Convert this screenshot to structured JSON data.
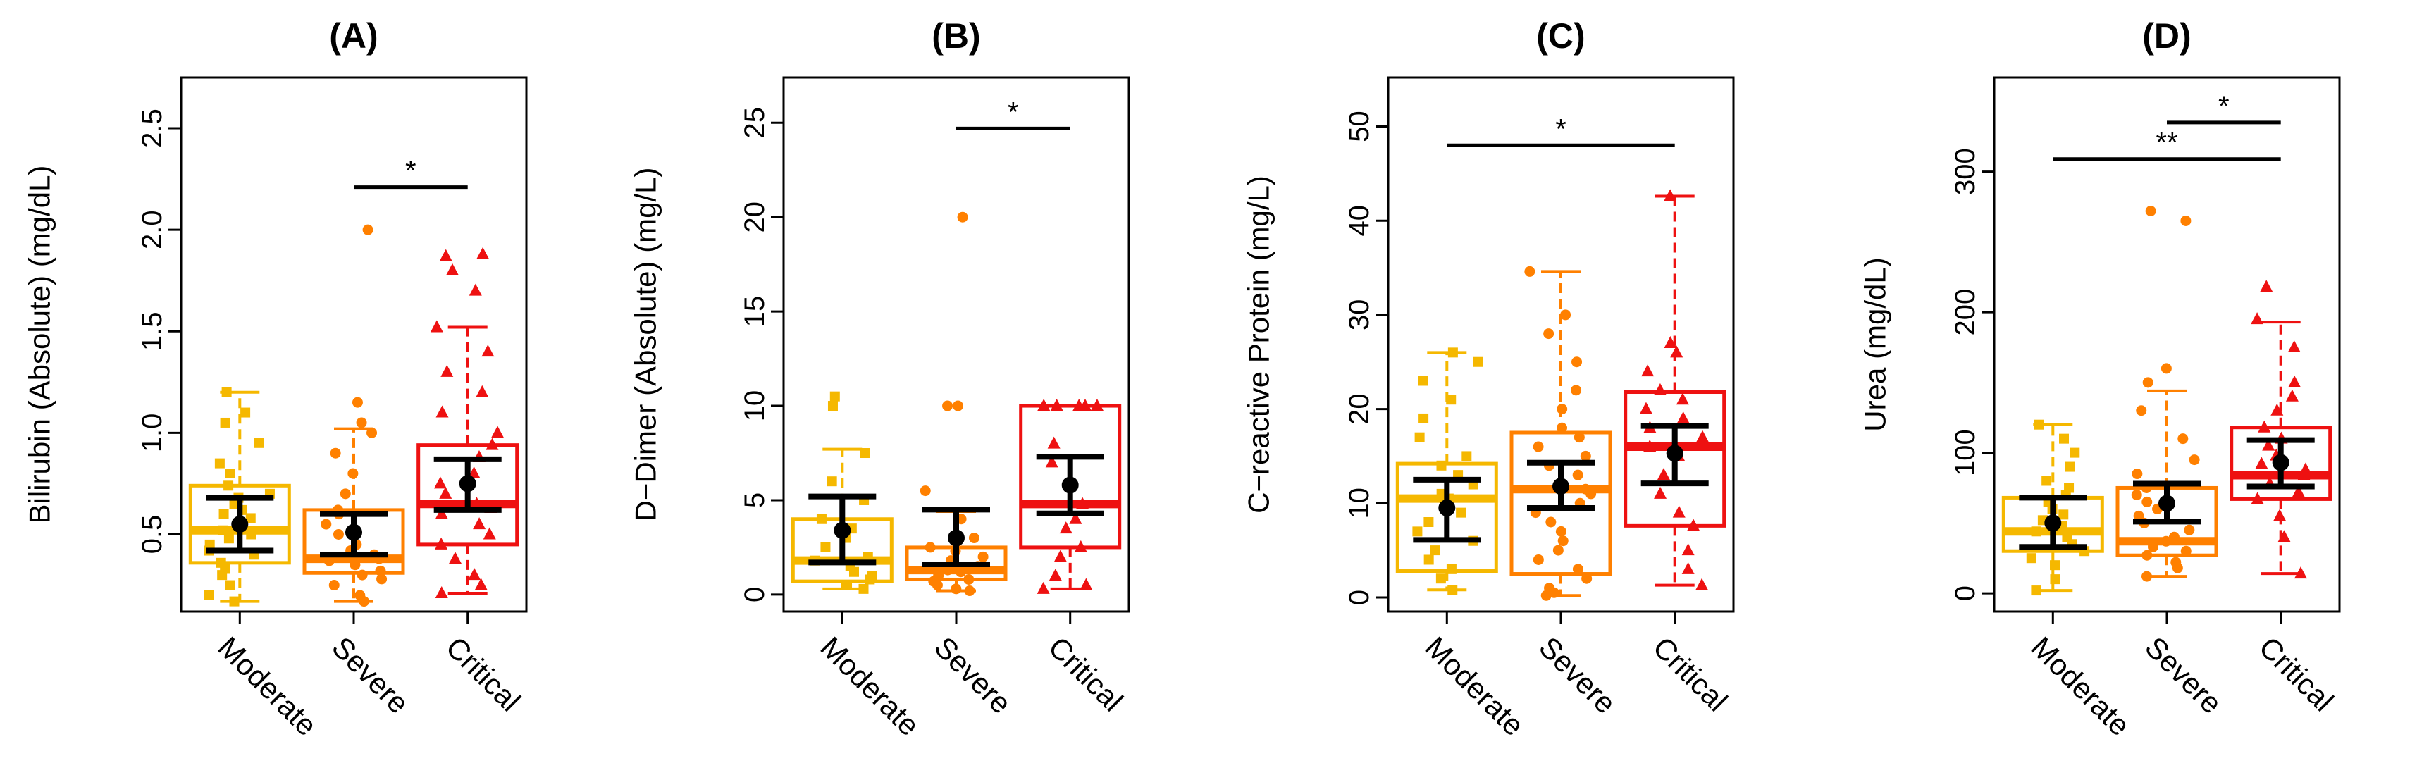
{
  "chart_data": [
    {
      "type": "boxplot",
      "title": "(A)",
      "ylabel": "Bilirubin (Absolute) (mg/dL)",
      "ylim": [
        0.12,
        2.75
      ],
      "yticks": [
        0.5,
        1.0,
        1.5,
        2.0,
        2.5
      ],
      "ytick_labels": [
        "0.5",
        "1.0",
        "1.5",
        "2.0",
        "2.5"
      ],
      "categories": [
        "Moderate",
        "Severe",
        "Critical"
      ],
      "colors": [
        "#F5B800",
        "#FF8000",
        "#EE1111"
      ],
      "markers": [
        "square",
        "circle",
        "triangle"
      ],
      "boxes": [
        {
          "min": 0.17,
          "q1": 0.36,
          "median": 0.52,
          "q3": 0.74,
          "max": 1.2
        },
        {
          "min": 0.17,
          "q1": 0.31,
          "median": 0.38,
          "q3": 0.62,
          "max": 1.02
        },
        {
          "min": 0.21,
          "q1": 0.45,
          "median": 0.65,
          "q3": 0.94,
          "max": 1.52
        }
      ],
      "means": [
        {
          "mean": 0.55,
          "lower": 0.42,
          "upper": 0.68
        },
        {
          "mean": 0.51,
          "lower": 0.4,
          "upper": 0.6
        },
        {
          "mean": 0.75,
          "lower": 0.62,
          "upper": 0.87
        }
      ],
      "points": [
        [
          0.17,
          0.2,
          0.25,
          0.3,
          0.33,
          0.36,
          0.4,
          0.42,
          0.45,
          0.48,
          0.5,
          0.52,
          0.55,
          0.58,
          0.6,
          0.62,
          0.65,
          0.68,
          0.7,
          0.74,
          0.8,
          0.85,
          0.95,
          1.05,
          1.1,
          1.2
        ],
        [
          0.17,
          0.2,
          0.25,
          0.28,
          0.3,
          0.32,
          0.35,
          0.37,
          0.38,
          0.4,
          0.42,
          0.45,
          0.5,
          0.55,
          0.6,
          0.62,
          0.7,
          0.8,
          0.9,
          1.0,
          1.05,
          1.15,
          2.0
        ],
        [
          0.21,
          0.25,
          0.3,
          0.38,
          0.45,
          0.5,
          0.55,
          0.6,
          0.63,
          0.65,
          0.7,
          0.75,
          0.8,
          0.88,
          0.94,
          1.0,
          1.1,
          1.2,
          1.3,
          1.4,
          1.52,
          1.7,
          1.8,
          1.87,
          1.88
        ]
      ],
      "significance": [
        {
          "from": 1,
          "to": 2,
          "y": 2.21,
          "label": "*"
        }
      ]
    },
    {
      "type": "boxplot",
      "title": "(B)",
      "ylabel": "D−Dimer (Absolute) (mg/L)",
      "ylim": [
        -0.9,
        27.4
      ],
      "yticks": [
        0,
        5,
        10,
        15,
        20,
        25
      ],
      "ytick_labels": [
        "0",
        "5",
        "10",
        "15",
        "20",
        "25"
      ],
      "categories": [
        "Moderate",
        "Severe",
        "Critical"
      ],
      "colors": [
        "#F5B800",
        "#FF8000",
        "#EE1111"
      ],
      "markers": [
        "square",
        "circle",
        "triangle"
      ],
      "boxes": [
        {
          "min": 0.3,
          "q1": 0.7,
          "median": 1.8,
          "q3": 4.0,
          "max": 7.7
        },
        {
          "min": 0.2,
          "q1": 0.8,
          "median": 1.3,
          "q3": 2.5,
          "max": 4.4
        },
        {
          "min": 0.3,
          "q1": 2.5,
          "median": 4.8,
          "q3": 10.0,
          "max": 10.0
        }
      ],
      "means": [
        {
          "mean": 3.4,
          "lower": 1.7,
          "upper": 5.2
        },
        {
          "mean": 3.0,
          "lower": 1.6,
          "upper": 4.5
        },
        {
          "mean": 5.8,
          "lower": 4.3,
          "upper": 7.3
        }
      ],
      "points": [
        [
          0.3,
          0.5,
          0.8,
          1.0,
          1.2,
          1.5,
          1.8,
          2.0,
          2.5,
          3.0,
          3.5,
          4.0,
          5.0,
          6.0,
          7.5,
          10.0,
          10.5
        ],
        [
          0.2,
          0.3,
          0.5,
          0.7,
          0.8,
          1.0,
          1.2,
          1.3,
          1.5,
          1.8,
          2.0,
          2.3,
          2.5,
          3.0,
          4.0,
          5.5,
          10.0,
          10.0,
          20.0
        ],
        [
          0.3,
          0.5,
          1.0,
          2.0,
          2.5,
          3.5,
          4.0,
          4.8,
          6.0,
          7.0,
          8.0,
          10.0,
          10.0,
          10.0,
          10.0,
          10.0
        ]
      ],
      "significance": [
        {
          "from": 1,
          "to": 2,
          "y": 24.7,
          "label": "*"
        }
      ]
    },
    {
      "type": "boxplot",
      "title": "(C)",
      "ylabel": "C−reactive Protein (mg/L)",
      "ylim": [
        -1.5,
        55.2
      ],
      "yticks": [
        0,
        10,
        20,
        30,
        40,
        50
      ],
      "ytick_labels": [
        "0",
        "10",
        "20",
        "30",
        "40",
        "50"
      ],
      "categories": [
        "Moderate",
        "Severe",
        "Critical"
      ],
      "colors": [
        "#F5B800",
        "#FF8000",
        "#EE1111"
      ],
      "markers": [
        "square",
        "circle",
        "triangle"
      ],
      "boxes": [
        {
          "min": 0.8,
          "q1": 2.8,
          "median": 10.5,
          "q3": 14.2,
          "max": 26.0
        },
        {
          "min": 0.2,
          "q1": 2.5,
          "median": 11.5,
          "q3": 17.5,
          "max": 34.6
        },
        {
          "min": 1.3,
          "q1": 7.6,
          "median": 16.0,
          "q3": 21.8,
          "max": 42.6
        }
      ],
      "means": [
        {
          "mean": 9.5,
          "lower": 6.1,
          "upper": 12.5
        },
        {
          "mean": 11.8,
          "lower": 9.5,
          "upper": 14.3
        },
        {
          "mean": 15.3,
          "lower": 12.1,
          "upper": 18.2
        }
      ],
      "points": [
        [
          0.8,
          2.0,
          3.0,
          4.0,
          5.0,
          6.0,
          7.0,
          8.0,
          9.0,
          10.0,
          10.5,
          11.0,
          12.0,
          13.0,
          14.0,
          15.0,
          17.0,
          19.0,
          21.0,
          23.0,
          25.0,
          26.0
        ],
        [
          0.2,
          0.5,
          1.0,
          2.0,
          3.0,
          4.0,
          5.0,
          6.0,
          7.0,
          8.0,
          9.0,
          10.0,
          11.0,
          11.5,
          12.0,
          13.0,
          14.0,
          15.0,
          16.0,
          17.0,
          18.0,
          20.0,
          22.0,
          25.0,
          28.0,
          30.0,
          34.6
        ],
        [
          1.3,
          3.0,
          5.0,
          7.6,
          9.0,
          11.0,
          13.0,
          15.0,
          16.0,
          17.0,
          18.0,
          19.0,
          20.0,
          21.0,
          22.0,
          24.0,
          26.0,
          27.0,
          42.6
        ]
      ],
      "significance": [
        {
          "from": 0,
          "to": 2,
          "y": 48.0,
          "label": "*"
        }
      ]
    },
    {
      "type": "boxplot",
      "title": "(D)",
      "ylabel": "Urea (mg/dL)",
      "ylim": [
        -13,
        367
      ],
      "yticks": [
        0,
        100,
        200,
        300
      ],
      "ytick_labels": [
        "0",
        "100",
        "200",
        "300"
      ],
      "categories": [
        "Moderate",
        "Severe",
        "Critical"
      ],
      "colors": [
        "#F5B800",
        "#FF8000",
        "#EE1111"
      ],
      "markers": [
        "square",
        "circle",
        "triangle"
      ],
      "boxes": [
        {
          "min": 2,
          "q1": 30,
          "median": 44,
          "q3": 68,
          "max": 120
        },
        {
          "min": 12,
          "q1": 27,
          "median": 37,
          "q3": 75,
          "max": 144
        },
        {
          "min": 14,
          "q1": 67,
          "median": 84,
          "q3": 118,
          "max": 193
        }
      ],
      "means": [
        {
          "mean": 50,
          "lower": 33,
          "upper": 68
        },
        {
          "mean": 64,
          "lower": 51,
          "upper": 78
        },
        {
          "mean": 93,
          "lower": 76,
          "upper": 109
        }
      ],
      "points": [
        [
          2,
          10,
          20,
          25,
          30,
          35,
          40,
          44,
          48,
          52,
          56,
          60,
          65,
          70,
          75,
          80,
          90,
          100,
          110,
          120
        ],
        [
          12,
          18,
          22,
          27,
          30,
          33,
          36,
          37,
          40,
          45,
          50,
          55,
          60,
          65,
          70,
          75,
          85,
          95,
          110,
          130,
          150,
          160,
          265,
          272
        ],
        [
          14,
          40,
          55,
          67,
          72,
          78,
          84,
          88,
          92,
          98,
          105,
          110,
          118,
          130,
          140,
          150,
          175,
          195,
          218
        ]
      ],
      "significance": [
        {
          "from": 0,
          "to": 2,
          "y": 309,
          "label": "**"
        },
        {
          "from": 1,
          "to": 2,
          "y": 335,
          "label": "*"
        }
      ]
    }
  ]
}
